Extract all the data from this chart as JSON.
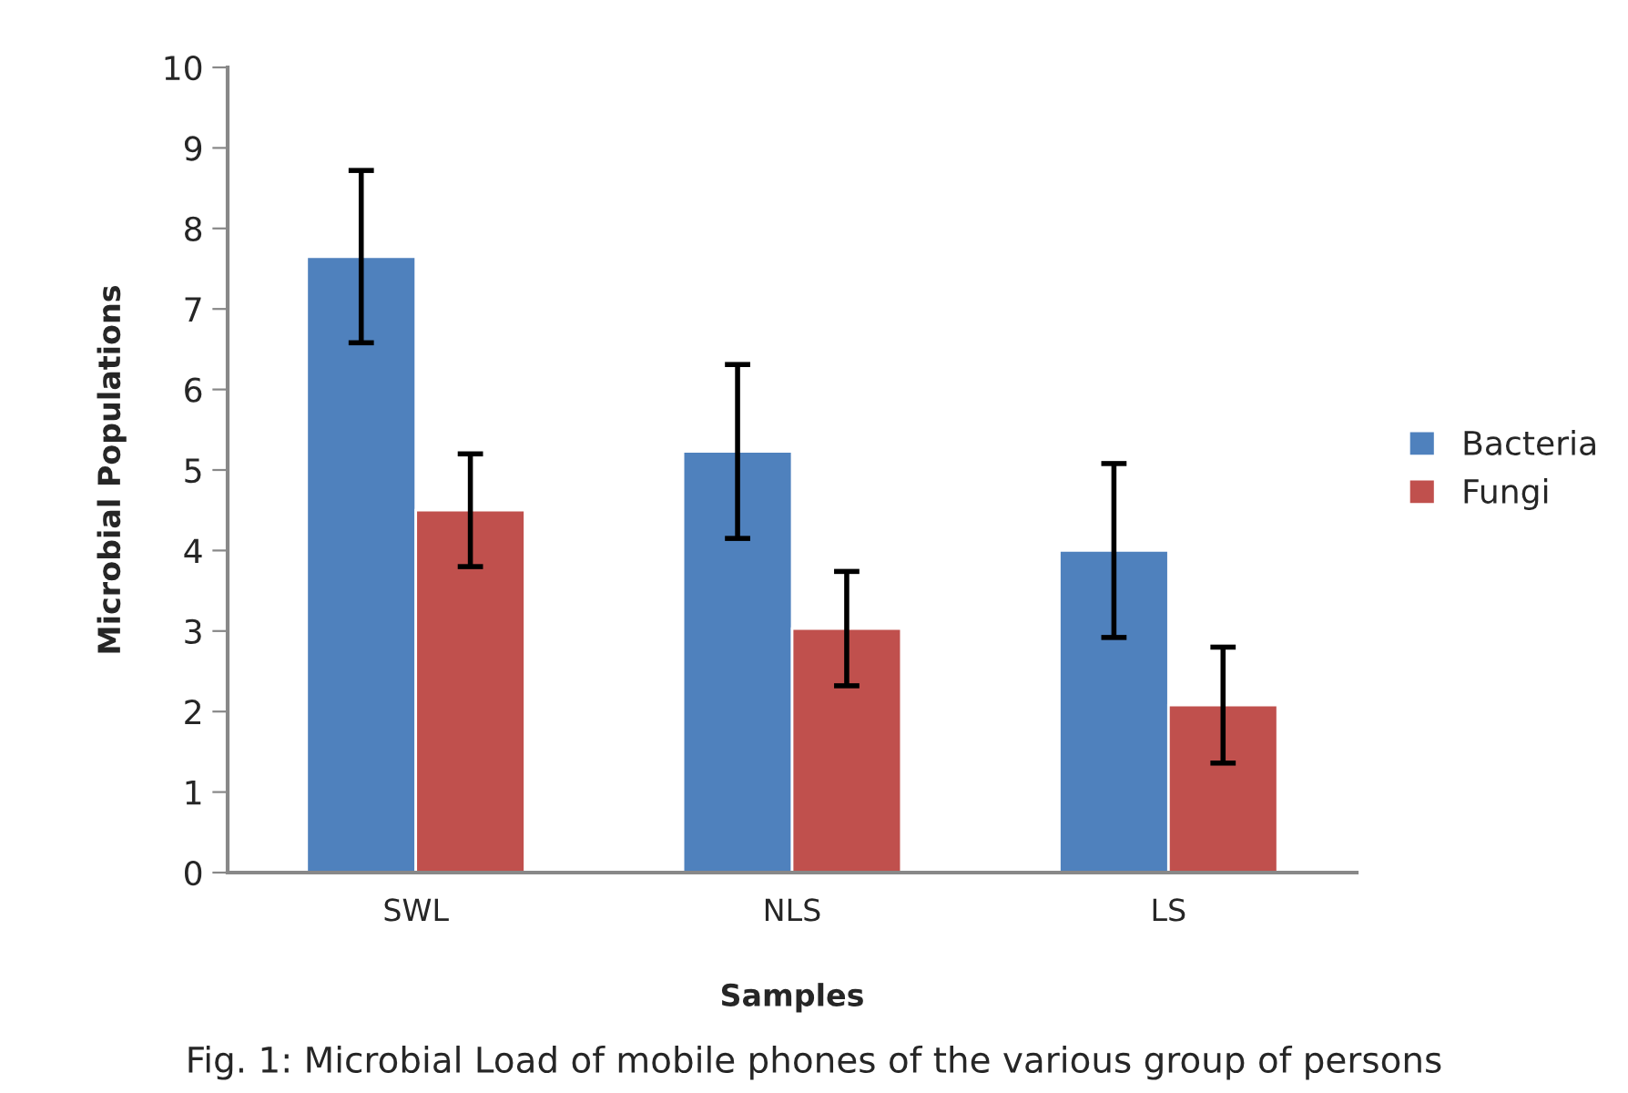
{
  "chart_data": {
    "type": "bar",
    "categories": [
      "SWL",
      "NLS",
      "LS"
    ],
    "series": [
      {
        "name": "Bacteria",
        "color": "#4f81bd",
        "values": [
          7.65,
          5.23,
          4.0
        ],
        "errors": [
          1.07,
          1.08,
          1.08
        ]
      },
      {
        "name": "Fungi",
        "color": "#c0504d",
        "values": [
          4.5,
          3.03,
          2.08
        ],
        "errors": [
          0.7,
          0.71,
          0.72
        ]
      }
    ],
    "xlabel": "Samples",
    "ylabel": "Microbial Populations",
    "ylim": [
      0,
      10
    ],
    "yticks": [
      0,
      1,
      2,
      3,
      4,
      5,
      6,
      7,
      8,
      9,
      10
    ],
    "grid": false,
    "legend": "right",
    "annotations": [
      "Fig. 1: Microbial Load of mobile phones of the various group of persons"
    ]
  }
}
